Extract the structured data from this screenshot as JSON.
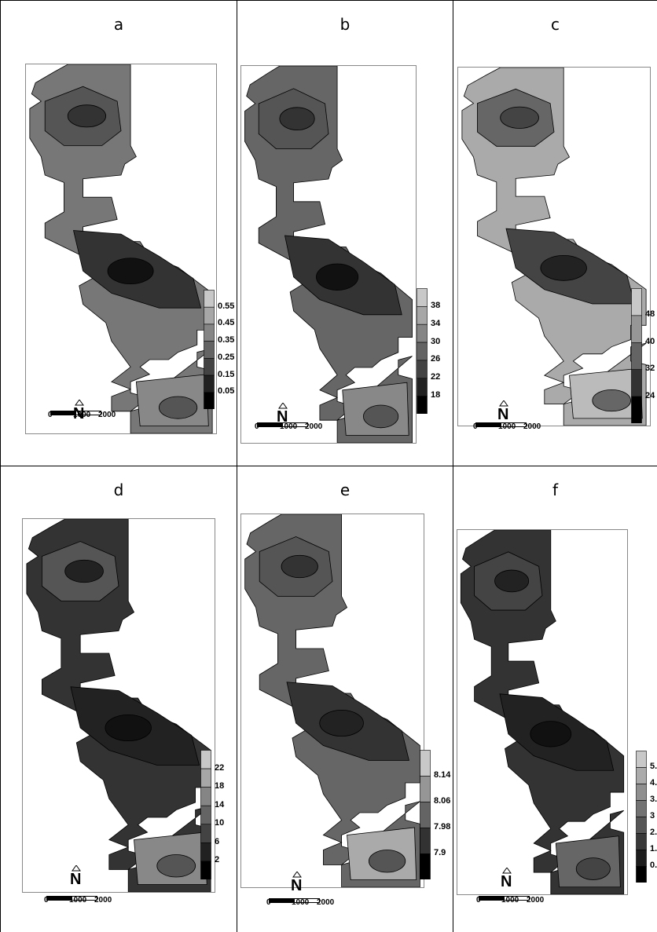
{
  "panels": [
    {
      "label": "a",
      "legend": [
        "0.55",
        "0.45",
        "0.35",
        "0.25",
        "0.15",
        "0.05"
      ],
      "scale": [
        "0",
        "1000",
        "2000"
      ],
      "colors": {
        "bg": "#777",
        "mid": "#555",
        "dark": "#333",
        "darkest": "#111",
        "light": "#888"
      }
    },
    {
      "label": "b",
      "legend": [
        "38",
        "34",
        "30",
        "26",
        "22",
        "18"
      ],
      "scale": [
        "0",
        "1000",
        "2000"
      ],
      "colors": {
        "bg": "#666",
        "mid": "#555",
        "dark": "#333",
        "darkest": "#111",
        "light": "#888"
      }
    },
    {
      "label": "c",
      "legend": [
        "48",
        "40",
        "32",
        "24"
      ],
      "scale": [
        "0",
        "1000",
        "2000"
      ],
      "colors": {
        "bg": "#aaa",
        "mid": "#666",
        "dark": "#444",
        "darkest": "#222",
        "light": "#bbb"
      }
    },
    {
      "label": "d",
      "legend": [
        "22",
        "18",
        "14",
        "10",
        "6",
        "2"
      ],
      "scale": [
        "0",
        "1000",
        "2000"
      ],
      "colors": {
        "bg": "#333",
        "mid": "#555",
        "dark": "#222",
        "darkest": "#111",
        "light": "#888"
      }
    },
    {
      "label": "e",
      "legend": [
        "8.14",
        "8.06",
        "7.98",
        "7.9"
      ],
      "scale": [
        "0",
        "1000",
        "2000"
      ],
      "colors": {
        "bg": "#666",
        "mid": "#555",
        "dark": "#333",
        "darkest": "#222",
        "light": "#aaa"
      }
    },
    {
      "label": "f",
      "legend": [
        "5.",
        "4.",
        "3.",
        "3",
        "2.",
        "1.",
        "0."
      ],
      "scale": [
        "0",
        "1000",
        "2000"
      ],
      "colors": {
        "bg": "#333",
        "mid": "#444",
        "dark": "#222",
        "darkest": "#111",
        "light": "#666"
      }
    }
  ],
  "north_label": "N"
}
